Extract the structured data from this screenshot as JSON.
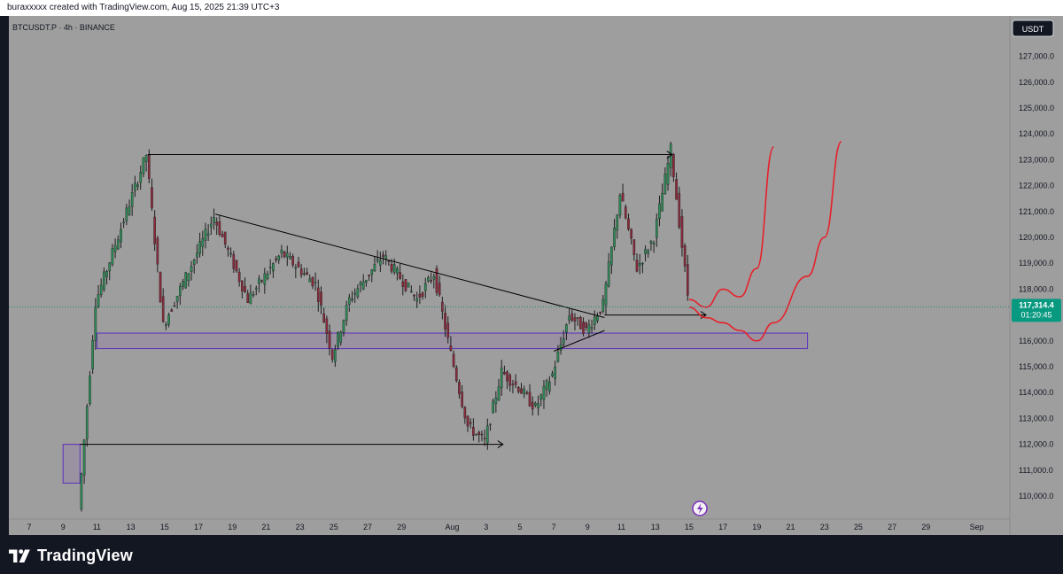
{
  "header": {
    "author_line": "buraxxxxx created with TradingView.com, Aug 15, 2025 21:39 UTC+3"
  },
  "chart_header": {
    "symbol_line": "BTCUSDT.P · 4h · BINANCE",
    "currency_button": "USDT"
  },
  "price_badge": {
    "price": "117,314.4",
    "countdown": "01:20:45",
    "color": "#089981"
  },
  "brand": {
    "name": "TradingView"
  },
  "colors": {
    "plot_bg": "#9e9e9e",
    "down_candle": "#8c2a3c",
    "up_candle": "#2e8b57",
    "zone_stroke": "#5b2fbf",
    "projection": "#e8202a",
    "arrow": "#000000"
  },
  "chart_data": {
    "type": "candlestick",
    "symbol": "BTCUSDT.P",
    "timeframe": "4h",
    "exchange": "BINANCE",
    "y_ticks": [
      110000,
      111000,
      112000,
      113000,
      114000,
      115000,
      116000,
      117000,
      118000,
      119000,
      120000,
      121000,
      122000,
      123000,
      124000,
      125000,
      126000,
      127000
    ],
    "y_tick_labels": [
      "110,000.0",
      "111,000.0",
      "112,000.0",
      "113,000.0",
      "114,000.0",
      "115,000.0",
      "116,000.0",
      "117,000.0",
      "118,000.0",
      "119,000.0",
      "120,000.0",
      "121,000.0",
      "122,000.0",
      "123,000.0",
      "124,000.0",
      "125,000.0",
      "126,000.0",
      "127,000.0"
    ],
    "x_dates": [
      "2025-07-07",
      "2025-07-09",
      "2025-07-11",
      "2025-07-13",
      "2025-07-15",
      "2025-07-17",
      "2025-07-19",
      "2025-07-21",
      "2025-07-23",
      "2025-07-25",
      "2025-07-27",
      "2025-07-29",
      "2025-08-01",
      "2025-08-03",
      "2025-08-05",
      "2025-08-07",
      "2025-08-09",
      "2025-08-11",
      "2025-08-13",
      "2025-08-15",
      "2025-08-17",
      "2025-08-19",
      "2025-08-21",
      "2025-08-23",
      "2025-08-25",
      "2025-08-27",
      "2025-08-29",
      "2025-09-01"
    ],
    "x_labels": [
      "7",
      "9",
      "11",
      "13",
      "15",
      "17",
      "19",
      "21",
      "23",
      "25",
      "27",
      "29",
      "Aug",
      "3",
      "5",
      "7",
      "9",
      "11",
      "13",
      "15",
      "17",
      "19",
      "21",
      "23",
      "25",
      "27",
      "29",
      "Sep"
    ],
    "last_price": 117314.4,
    "key_points": [
      {
        "date": "2025-07-10",
        "price": 109500
      },
      {
        "date": "2025-07-11",
        "price": 117500
      },
      {
        "date": "2025-07-14",
        "price": 123200
      },
      {
        "date": "2025-07-15",
        "price": 116600
      },
      {
        "date": "2025-07-18",
        "price": 120800
      },
      {
        "date": "2025-07-20",
        "price": 117600
      },
      {
        "date": "2025-07-22",
        "price": 119400
      },
      {
        "date": "2025-07-24",
        "price": 118200
      },
      {
        "date": "2025-07-25",
        "price": 115400
      },
      {
        "date": "2025-07-26",
        "price": 117600
      },
      {
        "date": "2025-07-28",
        "price": 119300
      },
      {
        "date": "2025-07-30",
        "price": 117600
      },
      {
        "date": "2025-07-31",
        "price": 118600
      },
      {
        "date": "2025-08-01",
        "price": 115500
      },
      {
        "date": "2025-08-02",
        "price": 112700
      },
      {
        "date": "2025-08-03",
        "price": 112100
      },
      {
        "date": "2025-08-04",
        "price": 114800
      },
      {
        "date": "2025-08-05",
        "price": 114200
      },
      {
        "date": "2025-08-06",
        "price": 113400
      },
      {
        "date": "2025-08-07",
        "price": 114700
      },
      {
        "date": "2025-08-08",
        "price": 117000
      },
      {
        "date": "2025-08-09",
        "price": 116400
      },
      {
        "date": "2025-08-10",
        "price": 117400
      },
      {
        "date": "2025-08-11",
        "price": 121700
      },
      {
        "date": "2025-08-12",
        "price": 118800
      },
      {
        "date": "2025-08-13",
        "price": 120000
      },
      {
        "date": "2025-08-14",
        "price": 123400
      },
      {
        "date": "2025-08-15",
        "price": 117800
      },
      {
        "date": "2025-08-15",
        "price": 117314.4
      }
    ],
    "zones": [
      {
        "from": "2025-07-11",
        "to": "2025-08-22",
        "low": 115700,
        "high": 116300
      },
      {
        "from": "2025-07-09",
        "to": "2025-07-10",
        "low": 110500,
        "high": 112000
      }
    ],
    "trendlines": [
      {
        "from": {
          "date": "2025-07-18",
          "price": 120900
        },
        "to": {
          "date": "2025-08-10",
          "price": 116900
        }
      },
      {
        "from": {
          "date": "2025-08-07",
          "price": 115600
        },
        "to": {
          "date": "2025-08-10",
          "price": 116400
        }
      }
    ],
    "arrows": [
      {
        "from": {
          "date": "2025-07-14",
          "price": 123200
        },
        "to": {
          "date": "2025-08-14",
          "price": 123200
        }
      },
      {
        "from": {
          "date": "2025-07-10",
          "price": 112000
        },
        "to": {
          "date": "2025-08-04",
          "price": 112000
        }
      },
      {
        "from": {
          "date": "2025-08-10",
          "price": 117000
        },
        "to": {
          "date": "2025-08-16",
          "price": 117000
        }
      }
    ],
    "projections": [
      {
        "points": [
          {
            "date": "2025-08-15",
            "price": 117600
          },
          {
            "date": "2025-08-16",
            "price": 117300
          },
          {
            "date": "2025-08-17",
            "price": 118000
          },
          {
            "date": "2025-08-18",
            "price": 117700
          },
          {
            "date": "2025-08-19",
            "price": 118800
          },
          {
            "date": "2025-08-20",
            "price": 123500
          }
        ]
      },
      {
        "points": [
          {
            "date": "2025-08-15",
            "price": 117300
          },
          {
            "date": "2025-08-16",
            "price": 116900
          },
          {
            "date": "2025-08-17",
            "price": 116700
          },
          {
            "date": "2025-08-18",
            "price": 116400
          },
          {
            "date": "2025-08-19",
            "price": 116000
          },
          {
            "date": "2025-08-20",
            "price": 116700
          },
          {
            "date": "2025-08-22",
            "price": 118500
          },
          {
            "date": "2025-08-23",
            "price": 120000
          },
          {
            "date": "2025-08-24",
            "price": 123700
          }
        ]
      }
    ]
  }
}
